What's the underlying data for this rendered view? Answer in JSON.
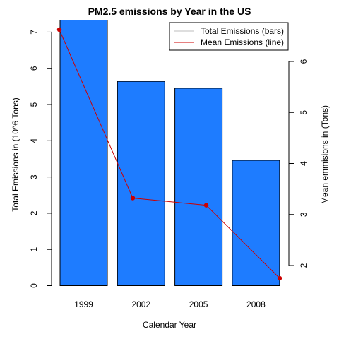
{
  "chart_data": {
    "type": "bar",
    "title": "PM2.5 emissions by Year in the US",
    "xlabel": "Calendar Year",
    "ylabel_left": "Total Emissions in (10^6 Tons)",
    "ylabel_right": "Mean emmisions in (Tons)",
    "categories": [
      "1999",
      "2002",
      "2005",
      "2008"
    ],
    "series": [
      {
        "name": "Total Emissions (bars)",
        "kind": "bar",
        "axis": "left",
        "color": "#1E7CFF",
        "values": [
          7.33,
          5.64,
          5.45,
          3.46
        ]
      },
      {
        "name": "Mean Emissions (line)",
        "kind": "line",
        "axis": "right",
        "color": "#CC0000",
        "values": [
          6.62,
          3.32,
          3.18,
          1.75
        ]
      }
    ],
    "ylim_left": [
      0,
      7.33
    ],
    "yticks_left": [
      "0",
      "1",
      "2",
      "3",
      "4",
      "5",
      "6",
      "7"
    ],
    "ylim_right": [
      1.75,
      6.62
    ],
    "yticks_right": [
      "2",
      "3",
      "4",
      "5",
      "6"
    ],
    "legend_position": "top-right",
    "grid": false
  }
}
